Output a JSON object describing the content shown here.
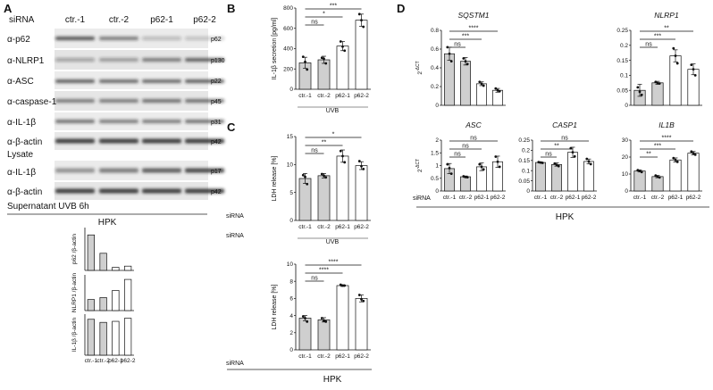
{
  "panel_letters": [
    "A",
    "B",
    "C",
    "D"
  ],
  "blot": {
    "sirna_label": "siRNA",
    "lanes": [
      "ctr.-1",
      "ctr.-2",
      "p62-1",
      "p62-2"
    ],
    "lysate_rows": [
      {
        "antibody": "α-p62",
        "kda": "p62"
      },
      {
        "antibody": "α-NLRP1",
        "kda": "p130"
      },
      {
        "antibody": "α-ASC",
        "kda": "p22"
      },
      {
        "antibody": "α-caspase-1",
        "kda": "p45"
      },
      {
        "antibody": "α-IL-1β",
        "kda": "p31"
      },
      {
        "antibody": "α-β-actin",
        "kda": "p42"
      }
    ],
    "lysate_label": "Lysate",
    "supernatant_rows": [
      {
        "antibody": "α-IL-1β",
        "kda": "p17"
      },
      {
        "antibody": "α-β-actin",
        "kda": "p42"
      }
    ],
    "supernatant_label": "Supernatant UVB 6h",
    "cell_label": "HPK"
  },
  "common": {
    "sirna": "siRNA",
    "uvb": "UVB",
    "hpk": "HPK",
    "ns": "ns",
    "stars": [
      "*",
      "**",
      "***",
      "****"
    ]
  },
  "chart_data": [
    {
      "id": "A-quant-p62",
      "type": "bar",
      "ylabel": "p62 /β-actin",
      "categories": [
        "ctr.-1",
        "ctr.-2",
        "p62-1",
        "p62-2"
      ],
      "values": [
        0.58,
        0.28,
        0.05,
        0.07
      ],
      "ylim": [
        0,
        0.7
      ]
    },
    {
      "id": "A-quant-nlrp1",
      "type": "bar",
      "ylabel": "NLRP1 /β-actin",
      "categories": [
        "ctr.-1",
        "ctr.-2",
        "p62-1",
        "p62-2"
      ],
      "values": [
        0.17,
        0.2,
        0.31,
        0.48
      ],
      "ylim": [
        0,
        0.55
      ]
    },
    {
      "id": "A-quant-il1b",
      "type": "bar",
      "ylabel": "IL-1β /β-actin",
      "categories": [
        "ctr.-1",
        "ctr.-2",
        "p62-1",
        "p62-2"
      ],
      "values": [
        0.35,
        0.32,
        0.33,
        0.36
      ],
      "ylim": [
        0,
        0.4
      ]
    },
    {
      "id": "B",
      "type": "bar",
      "ylabel": "IL-1β secretion [pg/ml]",
      "categories": [
        "ctr.-1",
        "ctr.-2",
        "p62-1",
        "p62-2"
      ],
      "values": [
        260,
        290,
        425,
        680
      ],
      "errors": [
        55,
        35,
        45,
        60
      ],
      "points": [
        [
          320,
          270,
          195
        ],
        [
          310,
          300,
          255
        ],
        [
          470,
          420,
          380
        ],
        [
          740,
          680,
          615
        ]
      ],
      "ylim": [
        0,
        800
      ],
      "yticks": [
        0,
        200,
        400,
        600,
        800
      ],
      "significance": [
        {
          "from": 0,
          "to": 1,
          "label": "ns"
        },
        {
          "from": 0,
          "to": 2,
          "label": "*"
        },
        {
          "from": 0,
          "to": 3,
          "label": "***"
        }
      ],
      "treatment": "UVB"
    },
    {
      "id": "C-UVB",
      "type": "bar",
      "ylabel": "LDH release [%]",
      "categories": [
        "ctr.-1",
        "ctr.-2",
        "p62-1",
        "p62-2"
      ],
      "values": [
        7.5,
        8.0,
        11.5,
        9.8
      ],
      "errors": [
        0.9,
        0.4,
        1.1,
        0.7
      ],
      "points": [
        [
          8.1,
          7.8,
          6.5
        ],
        [
          8.3,
          8.0,
          7.7
        ],
        [
          12.4,
          11.5,
          10.4
        ],
        [
          10.6,
          9.7,
          9.2
        ]
      ],
      "ylim": [
        0,
        15
      ],
      "yticks": [
        0,
        5,
        10,
        15
      ],
      "significance": [
        {
          "from": 0,
          "to": 1,
          "label": "ns"
        },
        {
          "from": 0,
          "to": 2,
          "label": "**"
        },
        {
          "from": 0,
          "to": 3,
          "label": "*"
        }
      ],
      "treatment": "UVB"
    },
    {
      "id": "C-ctrl",
      "type": "bar",
      "ylabel": "LDH release [%]",
      "categories": [
        "ctr.-1",
        "ctr.-2",
        "p62-1",
        "p62-2"
      ],
      "values": [
        3.7,
        3.5,
        7.5,
        6.0
      ],
      "errors": [
        0.3,
        0.25,
        0.1,
        0.4
      ],
      "points": [
        [
          3.9,
          3.7,
          3.3
        ],
        [
          3.7,
          3.4,
          3.3
        ],
        [
          7.6,
          7.5,
          7.5
        ],
        [
          6.4,
          5.9,
          5.7
        ]
      ],
      "ylim": [
        0,
        10
      ],
      "yticks": [
        0,
        2,
        4,
        6,
        8,
        10
      ],
      "significance": [
        {
          "from": 0,
          "to": 1,
          "label": "ns"
        },
        {
          "from": 0,
          "to": 2,
          "label": "****"
        },
        {
          "from": 0,
          "to": 3,
          "label": "****"
        }
      ]
    },
    {
      "id": "D-SQSTM1",
      "type": "bar",
      "title": "SQSTM1",
      "ylabel": "2^-ΔCT",
      "categories": [
        "ctr.-1",
        "ctr.-2",
        "p62-1",
        "p62-2"
      ],
      "values": [
        0.55,
        0.47,
        0.23,
        0.16
      ],
      "errors": [
        0.07,
        0.04,
        0.02,
        0.02
      ],
      "points": [
        [
          0.62,
          0.55,
          0.47
        ],
        [
          0.5,
          0.47,
          0.44
        ],
        [
          0.25,
          0.23,
          0.21
        ],
        [
          0.18,
          0.16,
          0.15
        ]
      ],
      "ylim": [
        0,
        0.8
      ],
      "yticks": [
        0,
        0.2,
        0.4,
        0.6,
        0.8
      ],
      "significance": [
        {
          "from": 0,
          "to": 1,
          "label": "ns"
        },
        {
          "from": 0,
          "to": 2,
          "label": "***"
        },
        {
          "from": 0,
          "to": 3,
          "label": "****"
        }
      ]
    },
    {
      "id": "D-NLRP1",
      "type": "bar",
      "title": "NLRP1",
      "ylabel": "",
      "categories": [
        "ctr.-1",
        "ctr.-2",
        "p62-1",
        "p62-2"
      ],
      "values": [
        0.05,
        0.075,
        0.165,
        0.12
      ],
      "errors": [
        0.02,
        0.005,
        0.02,
        0.018
      ],
      "points": [
        [
          0.06,
          0.045,
          0.035
        ],
        [
          0.078,
          0.074,
          0.073
        ],
        [
          0.19,
          0.165,
          0.14
        ],
        [
          0.135,
          0.12,
          0.1
        ]
      ],
      "ylim": [
        0,
        0.25
      ],
      "yticks": [
        0,
        0.05,
        0.1,
        0.15,
        0.2,
        0.25
      ],
      "significance": [
        {
          "from": 0,
          "to": 1,
          "label": "ns"
        },
        {
          "from": 0,
          "to": 2,
          "label": "***"
        },
        {
          "from": 0,
          "to": 3,
          "label": "**"
        }
      ]
    },
    {
      "id": "D-ASC",
      "type": "bar",
      "title": "ASC",
      "ylabel": "2^-ΔCT",
      "categories": [
        "ctr.-1",
        "ctr.-2",
        "p62-1",
        "p62-2"
      ],
      "values": [
        0.88,
        0.56,
        0.95,
        1.15
      ],
      "errors": [
        0.2,
        0.03,
        0.15,
        0.22
      ],
      "points": [
        [
          1.05,
          0.9,
          0.68
        ],
        [
          0.58,
          0.55,
          0.54
        ],
        [
          1.05,
          0.95,
          0.85
        ],
        [
          1.35,
          1.15,
          0.95
        ]
      ],
      "ylim": [
        0,
        2.0
      ],
      "yticks": [
        0,
        0.5,
        1.0,
        1.5,
        2.0
      ],
      "significance": [
        {
          "from": 0,
          "to": 1,
          "label": "ns"
        },
        {
          "from": 0,
          "to": 2,
          "label": "ns"
        },
        {
          "from": 0,
          "to": 3,
          "label": "ns"
        }
      ]
    },
    {
      "id": "D-CASP1",
      "type": "bar",
      "title": "CASP1",
      "ylabel": "",
      "categories": [
        "ctr.-1",
        "ctr.-2",
        "p62-1",
        "p62-2"
      ],
      "values": [
        0.14,
        0.13,
        0.19,
        0.145
      ],
      "errors": [
        0.003,
        0.008,
        0.025,
        0.012
      ],
      "points": [
        [
          0.142,
          0.14,
          0.138
        ],
        [
          0.135,
          0.128,
          0.122
        ],
        [
          0.21,
          0.19,
          0.17
        ],
        [
          0.158,
          0.145,
          0.132
        ]
      ],
      "ylim": [
        0,
        0.25
      ],
      "yticks": [
        0,
        0.05,
        0.1,
        0.15,
        0.2,
        0.25
      ],
      "significance": [
        {
          "from": 0,
          "to": 1,
          "label": "ns"
        },
        {
          "from": 0,
          "to": 2,
          "label": "**"
        },
        {
          "from": 0,
          "to": 3,
          "label": "ns"
        }
      ]
    },
    {
      "id": "D-IL1B",
      "type": "bar",
      "title": "IL1B",
      "ylabel": "",
      "categories": [
        "ctr.-1",
        "ctr.-2",
        "p62-1",
        "p62-2"
      ],
      "values": [
        11.8,
        8.5,
        18.3,
        22.3
      ],
      "errors": [
        0.6,
        0.7,
        1.2,
        1.0
      ],
      "points": [
        [
          12.3,
          11.8,
          11.2
        ],
        [
          9.1,
          8.4,
          8.0
        ],
        [
          19.4,
          18.3,
          17.2
        ],
        [
          23.3,
          22.3,
          21.4
        ]
      ],
      "ylim": [
        0,
        30
      ],
      "yticks": [
        0,
        10,
        20,
        30
      ],
      "significance": [
        {
          "from": 0,
          "to": 1,
          "label": "**"
        },
        {
          "from": 0,
          "to": 2,
          "label": "***"
        },
        {
          "from": 0,
          "to": 3,
          "label": "****"
        }
      ]
    }
  ]
}
